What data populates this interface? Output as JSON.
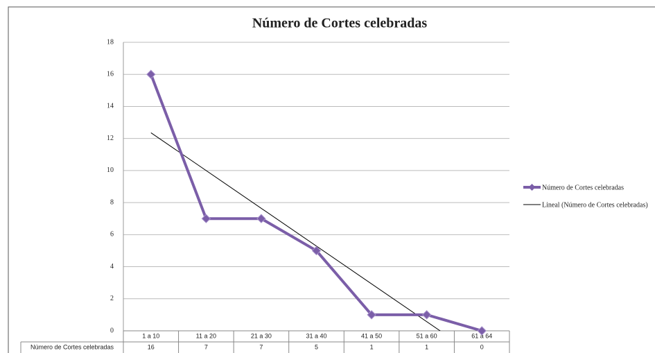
{
  "chart_data": {
    "type": "line",
    "title": "Número de Cortes celebradas",
    "categories": [
      "1 a 10",
      "11 a 20",
      "21 a 30",
      "31 a 40",
      "41 a 50",
      "51 a 60",
      "61 a 64"
    ],
    "series": [
      {
        "name": "Número de Cortes celebradas",
        "color": "#7b5ea8",
        "values": [
          16,
          7,
          7,
          5,
          1,
          1,
          0
        ]
      }
    ],
    "trendline": {
      "name": "Lineal (Número de Cortes celebradas)",
      "color": "#000000"
    },
    "ylim": [
      0,
      18
    ],
    "yticks": [
      0,
      2,
      4,
      6,
      8,
      10,
      12,
      14,
      16,
      18
    ],
    "grid": true,
    "legend": "right"
  }
}
